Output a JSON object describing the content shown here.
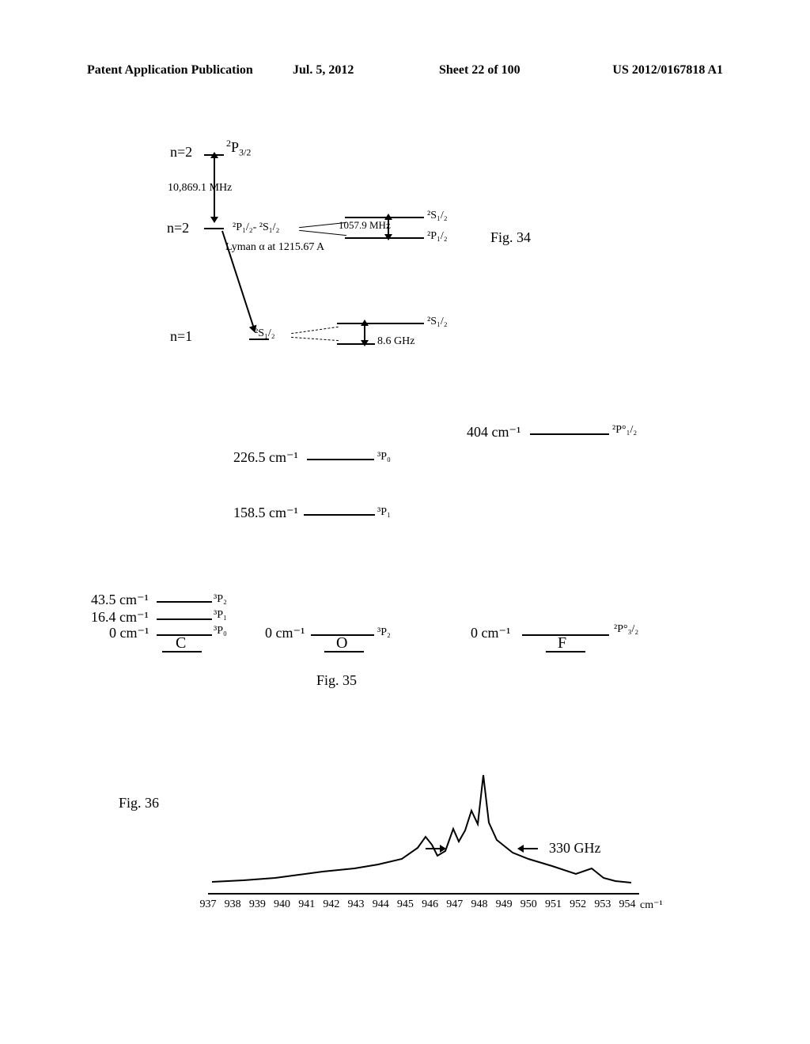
{
  "header": {
    "left": "Patent Application Publication",
    "date": "Jul. 5, 2012",
    "sheet": "Sheet 22 of 100",
    "pubnum": "US 2012/0167818 A1"
  },
  "fig34": {
    "label": "Fig. 34",
    "n2": "n=2",
    "n2b": "n=2",
    "n1": "n=1",
    "p32": "²P",
    "p32_frac": "3/2",
    "freq1": "10,869.1 MHz",
    "lamb": "²P₁/₂- ²S₁/₂",
    "lamb_freq": "1057.9 MHz",
    "s12a": "²S₁/₂",
    "p12a": "²P₁/₂",
    "lyman": "Lyman α at 1215.67 A",
    "s12b": "²S₁/₂",
    "s12c": "²S₁/₂",
    "ghz": "8.6 GHz"
  },
  "fig35": {
    "label": "Fig. 35",
    "C": {
      "name": "C",
      "l1v": "43.5 cm⁻¹",
      "l1s": "³P₂",
      "l2v": "16.4 cm⁻¹",
      "l2s": "³P₁",
      "l3v": "0 cm⁻¹",
      "l3s": "³P₀"
    },
    "O": {
      "name": "O",
      "l1v": "226.5 cm⁻¹",
      "l1s": "³P₀",
      "l2v": "158.5 cm⁻¹",
      "l2s": "³P₁",
      "l3v": "0 cm⁻¹",
      "l3s": "³P₂"
    },
    "F": {
      "name": "F",
      "l1v": "404 cm⁻¹",
      "l1s": "²P°₁/₂",
      "l2v": "0 cm⁻¹",
      "l2s": "²P°₃/₂"
    }
  },
  "fig36": {
    "label": "Fig. 36",
    "annotation": "330 GHz",
    "axis_unit": "cm⁻¹",
    "ticks": [
      "937",
      "938",
      "939",
      "940",
      "941",
      "942",
      "943",
      "944",
      "945",
      "946",
      "947",
      "948",
      "949",
      "950",
      "951",
      "952",
      "953",
      "954"
    ],
    "points": [
      [
        0,
        5
      ],
      [
        40,
        7
      ],
      [
        80,
        10
      ],
      [
        110,
        14
      ],
      [
        140,
        18
      ],
      [
        180,
        22
      ],
      [
        210,
        27
      ],
      [
        240,
        34
      ],
      [
        260,
        48
      ],
      [
        270,
        62
      ],
      [
        278,
        52
      ],
      [
        285,
        38
      ],
      [
        295,
        44
      ],
      [
        305,
        72
      ],
      [
        312,
        56
      ],
      [
        320,
        70
      ],
      [
        328,
        95
      ],
      [
        336,
        78
      ],
      [
        343,
        140
      ],
      [
        350,
        80
      ],
      [
        360,
        58
      ],
      [
        380,
        42
      ],
      [
        400,
        34
      ],
      [
        430,
        25
      ],
      [
        460,
        15
      ],
      [
        480,
        22
      ],
      [
        495,
        10
      ],
      [
        510,
        6
      ],
      [
        530,
        4
      ]
    ]
  }
}
